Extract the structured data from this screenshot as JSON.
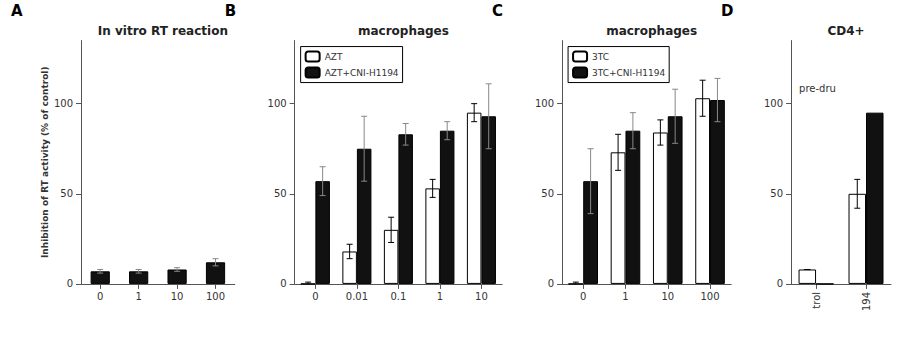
{
  "chart_data": [
    {
      "type": "bar",
      "title": "In vitro RT reaction",
      "ylabel": "Inhibition of RT activity (% of control)",
      "annotations": [
        "A"
      ],
      "categories": [
        "0",
        "1",
        "10",
        "100"
      ],
      "series": [
        {
          "color": "#111111",
          "values": [
            7,
            7,
            8,
            12
          ],
          "errors": [
            1,
            1,
            1,
            2
          ]
        }
      ],
      "ylim": [
        0,
        135
      ],
      "yticks": [
        0,
        50,
        100
      ],
      "grid": false
    },
    {
      "type": "bar",
      "title": "macrophages",
      "annotations": [
        "B"
      ],
      "categories": [
        "0",
        "0.01",
        "0.1",
        "1",
        "10"
      ],
      "series": [
        {
          "name": "AZT",
          "color": "#ffffff",
          "values": [
            0,
            18,
            30,
            53,
            95
          ],
          "errors": [
            1,
            4,
            7,
            5,
            5
          ]
        },
        {
          "name": "AZT+CNI-H1194",
          "color": "#111111",
          "values": [
            57,
            75,
            83,
            85,
            93
          ],
          "errors": [
            8,
            18,
            6,
            5,
            18
          ]
        }
      ],
      "ylim": [
        0,
        135
      ],
      "yticks": [
        0,
        50,
        100
      ],
      "grid": false,
      "legend": "upper left"
    },
    {
      "type": "bar",
      "title": "macrophages",
      "annotations": [
        "C"
      ],
      "categories": [
        "0",
        "1",
        "10",
        "100"
      ],
      "series": [
        {
          "name": "3TC",
          "color": "#ffffff",
          "values": [
            0,
            73,
            84,
            103
          ],
          "errors": [
            1,
            10,
            7,
            10
          ]
        },
        {
          "name": "3TC+CNI-H1194",
          "color": "#111111",
          "values": [
            57,
            85,
            93,
            102
          ],
          "errors": [
            18,
            10,
            15,
            12
          ]
        }
      ],
      "ylim": [
        0,
        135
      ],
      "yticks": [
        0,
        50,
        100
      ],
      "grid": false,
      "legend": "upper left"
    },
    {
      "type": "bar",
      "title": "CD4+",
      "subtitle": "pre-dru",
      "annotations": [
        "D"
      ],
      "categories": [
        "trol",
        "194"
      ],
      "series": [
        {
          "color": "#ffffff",
          "values": [
            8,
            50
          ],
          "errors": [
            0,
            8
          ]
        },
        {
          "color": "#111111",
          "values": [
            0,
            95
          ]
        }
      ],
      "ylim": [
        0,
        135
      ],
      "yticks": [
        0,
        50,
        100
      ],
      "grid": false
    }
  ]
}
